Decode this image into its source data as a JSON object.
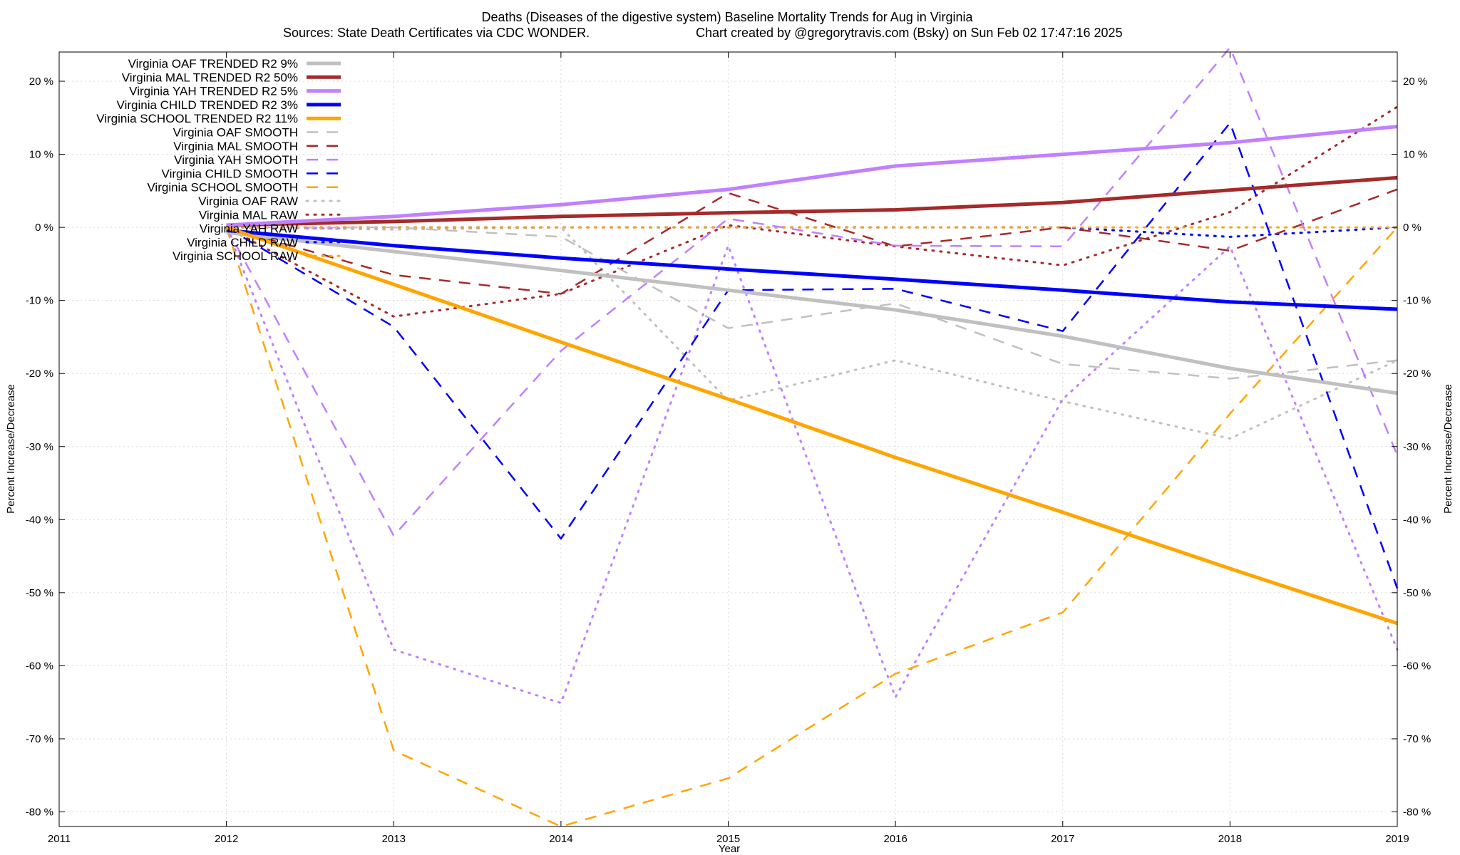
{
  "chart_data": {
    "type": "line",
    "title": "Deaths (Diseases of the digestive system)  Baseline Mortality Trends for Aug in Virginia",
    "subtitle_left": "Sources: State Death Certificates via CDC WONDER.",
    "subtitle_right": "Chart created by @gregorytravis.com (Bsky) on Sun Feb 02 17:47:16 2025",
    "xlabel": "Year",
    "ylabel_left": "Percent Increase/Decrease",
    "ylabel_right": "Percent Increase/Decrease",
    "xlim": [
      2011,
      2019
    ],
    "ylim": [
      -82,
      24
    ],
    "x_ticks": [
      "2011",
      "2012",
      "2013",
      "2014",
      "2015",
      "2016",
      "2017",
      "2018",
      "2019"
    ],
    "y_ticks_left": [
      "20 %",
      "10 %",
      "0 %",
      "-10 %",
      "-20 %",
      "-30 %",
      "-40 %",
      "-50 %",
      "-60 %",
      "-70 %",
      "-80 %"
    ],
    "y_ticks_right": [
      "20 %",
      "10 %",
      "0 %",
      "-10 %",
      "-20 %",
      "-30 %",
      "-40 %",
      "-50 %",
      "-60 %",
      "-70 %",
      "-80 %"
    ],
    "y_tick_values": [
      20,
      10,
      0,
      -10,
      -20,
      -30,
      -40,
      -50,
      -60,
      -70,
      -80
    ],
    "grid": true,
    "legend_position": "top-left",
    "series": [
      {
        "name": "Virginia OAF TRENDED R2",
        "r2": "9%",
        "style": "solid",
        "color": "#c0c0c0",
        "x": [
          2012,
          2013,
          2014,
          2015,
          2016,
          2017,
          2018,
          2019
        ],
        "y": [
          -0.7,
          -3.3,
          -5.9,
          -8.6,
          -11.3,
          -14.9,
          -19.3,
          -22.7
        ]
      },
      {
        "name": "Virginia MAL TRENDED R2",
        "r2": "50%",
        "style": "solid",
        "color": "#a52a2a",
        "x": [
          2012,
          2013,
          2014,
          2015,
          2016,
          2017,
          2018,
          2019
        ],
        "y": [
          0.3,
          0.8,
          1.5,
          2.0,
          2.4,
          3.4,
          5.1,
          6.8
        ]
      },
      {
        "name": "Virginia YAH TRENDED R2",
        "r2": "5%",
        "style": "solid",
        "color": "#c080ff",
        "x": [
          2012,
          2013,
          2014,
          2015,
          2016,
          2017,
          2018,
          2019
        ],
        "y": [
          0.3,
          1.5,
          3.1,
          5.2,
          8.4,
          10.0,
          11.6,
          13.8
        ]
      },
      {
        "name": "Virginia CHILD TRENDED R2",
        "r2": "3%",
        "style": "solid",
        "color": "#0000ff",
        "x": [
          2012,
          2013,
          2014,
          2015,
          2016,
          2017,
          2018,
          2019
        ],
        "y": [
          -0.4,
          -2.5,
          -4.2,
          -5.7,
          -7.1,
          -8.6,
          -10.2,
          -11.2
        ]
      },
      {
        "name": "Virginia SCHOOL TRENDED R2",
        "r2": "11%",
        "style": "solid",
        "color": "#ffa500",
        "x": [
          2012,
          2013,
          2014,
          2015,
          2016,
          2017,
          2018,
          2019
        ],
        "y": [
          0.0,
          -7.8,
          -15.7,
          -23.5,
          -31.5,
          -39.0,
          -46.7,
          -54.2
        ]
      },
      {
        "name": "Virginia OAF SMOOTH",
        "style": "dash",
        "color": "#c0c0c0",
        "x": [
          2012,
          2013,
          2014,
          2015,
          2016,
          2017,
          2018,
          2019
        ],
        "y": [
          0.0,
          0.0,
          -1.3,
          -13.8,
          -10.4,
          -18.7,
          -20.7,
          -18.2
        ]
      },
      {
        "name": "Virginia MAL SMOOTH",
        "style": "dash",
        "color": "#a52a2a",
        "x": [
          2012,
          2013,
          2014,
          2015,
          2016,
          2017,
          2018,
          2019
        ],
        "y": [
          0.0,
          -6.5,
          -9.1,
          4.7,
          -2.6,
          0.0,
          -3.2,
          5.2
        ]
      },
      {
        "name": "Virginia YAH SMOOTH",
        "style": "dash",
        "color": "#c080ff",
        "x": [
          2012,
          2013,
          2014,
          2015,
          2016,
          2017,
          2018,
          2019
        ],
        "y": [
          0.0,
          -42.2,
          -16.9,
          1.2,
          -2.5,
          -2.6,
          24.6,
          -31.2
        ]
      },
      {
        "name": "Virginia CHILD SMOOTH",
        "style": "dash",
        "color": "#0000ff",
        "x": [
          2012,
          2013,
          2014,
          2015,
          2016,
          2017,
          2018,
          2019
        ],
        "y": [
          0.0,
          -13.6,
          -42.6,
          -8.6,
          -8.4,
          -14.2,
          14.3,
          -49.4
        ]
      },
      {
        "name": "Virginia SCHOOL SMOOTH",
        "style": "dash",
        "color": "#ffa500",
        "x": [
          2012,
          2013,
          2014,
          2015,
          2016,
          2017,
          2018,
          2019
        ],
        "y": [
          0.0,
          -71.6,
          -82.0,
          -75.4,
          -61.1,
          -52.7,
          -25.5,
          0.0
        ]
      },
      {
        "name": "Virginia OAF RAW",
        "style": "dot",
        "color": "#c0c0c0",
        "x": [
          2012,
          2013,
          2014,
          2015,
          2016,
          2017,
          2018,
          2019
        ],
        "y": [
          0.0,
          -0.3,
          0.0,
          -23.7,
          -18.2,
          -23.8,
          -28.9,
          -18.2
        ]
      },
      {
        "name": "Virginia MAL RAW",
        "style": "dot",
        "color": "#a52a2a",
        "x": [
          2012,
          2013,
          2014,
          2015,
          2016,
          2017,
          2018,
          2019
        ],
        "y": [
          0.0,
          -12.2,
          -9.1,
          0.3,
          -2.6,
          -5.2,
          2.1,
          16.5
        ]
      },
      {
        "name": "Virginia YAH RAW",
        "style": "dot",
        "color": "#c080ff",
        "x": [
          2012,
          2013,
          2014,
          2015,
          2016,
          2017,
          2018,
          2019
        ],
        "y": [
          0.0,
          -57.8,
          -65.1,
          -2.5,
          -64.3,
          -23.5,
          -2.6,
          -57.8
        ]
      },
      {
        "name": "Virginia CHILD RAW",
        "style": "dot",
        "color": "#0000ff",
        "x": [
          2012,
          2013,
          2014,
          2015,
          2016,
          2017,
          2018,
          2019
        ],
        "y": [
          0.0,
          0.0,
          0.0,
          0.0,
          0.0,
          0.0,
          -1.3,
          0.0
        ]
      },
      {
        "name": "Virginia SCHOOL RAW",
        "style": "dot",
        "color": "#ffa500",
        "x": [
          2012,
          2013,
          2014,
          2015,
          2016,
          2017,
          2018,
          2019
        ],
        "y": [
          0.0,
          0.0,
          0.0,
          0.0,
          0.0,
          0.0,
          0.0,
          0.0
        ]
      }
    ]
  }
}
